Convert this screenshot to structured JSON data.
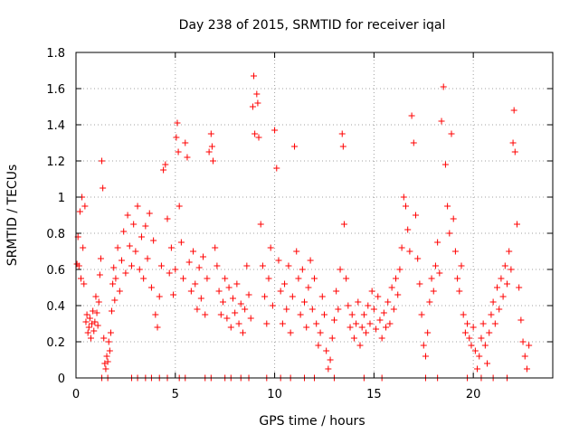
{
  "chart_data": {
    "type": "scatter",
    "title": "Day 238 of 2015, SRMTID for receiver iqal",
    "xlabel": "GPS time / hours",
    "ylabel": "SRMTID / TECUs",
    "xlim": [
      0,
      24
    ],
    "ylim": [
      0,
      1.8
    ],
    "xticks": [
      0,
      5,
      10,
      15,
      20
    ],
    "xtick_labels": [
      "0",
      "5",
      "10",
      "15",
      "20"
    ],
    "yticks": [
      0,
      0.2,
      0.4,
      0.6,
      0.8,
      1,
      1.2,
      1.4,
      1.6,
      1.8
    ],
    "ytick_labels": [
      "0",
      "0.2",
      "0.4",
      "0.6",
      "0.8",
      "1",
      "1.2",
      "1.4",
      "1.6",
      "1.8"
    ],
    "grid": true,
    "marker": "plus",
    "marker_color": "#ff0000",
    "series": [
      {
        "name": "SRMTID",
        "points": [
          [
            0.05,
            0.63
          ],
          [
            0.1,
            0.78
          ],
          [
            0.15,
            0.62
          ],
          [
            0.2,
            0.92
          ],
          [
            0.25,
            0.55
          ],
          [
            0.3,
            1.0
          ],
          [
            0.35,
            0.72
          ],
          [
            0.4,
            0.52
          ],
          [
            0.45,
            0.95
          ],
          [
            0.5,
            0.31
          ],
          [
            0.55,
            0.35
          ],
          [
            0.6,
            0.25
          ],
          [
            0.65,
            0.28
          ],
          [
            0.7,
            0.33
          ],
          [
            0.75,
            0.22
          ],
          [
            0.8,
            0.3
          ],
          [
            0.85,
            0.37
          ],
          [
            0.9,
            0.26
          ],
          [
            0.95,
            0.31
          ],
          [
            1.0,
            0.45
          ],
          [
            1.05,
            0.36
          ],
          [
            1.1,
            0.29
          ],
          [
            1.15,
            0.42
          ],
          [
            1.2,
            0.57
          ],
          [
            1.25,
            0.66
          ],
          [
            1.3,
            1.2
          ],
          [
            1.35,
            1.05
          ],
          [
            1.4,
            0.22
          ],
          [
            1.45,
            0.08
          ],
          [
            1.5,
            0.05
          ],
          [
            1.55,
            0.12
          ],
          [
            1.6,
            0.09
          ],
          [
            1.65,
            0.2
          ],
          [
            1.7,
            0.15
          ],
          [
            1.75,
            0.25
          ],
          [
            1.8,
            0.37
          ],
          [
            1.85,
            0.52
          ],
          [
            1.9,
            0.61
          ],
          [
            1.95,
            0.43
          ],
          [
            2.0,
            0.55
          ],
          [
            2.1,
            0.72
          ],
          [
            2.2,
            0.48
          ],
          [
            2.3,
            0.65
          ],
          [
            2.4,
            0.81
          ],
          [
            2.5,
            0.58
          ],
          [
            2.6,
            0.9
          ],
          [
            2.7,
            0.73
          ],
          [
            2.8,
            0.62
          ],
          [
            2.9,
            0.85
          ],
          [
            3.0,
            0.7
          ],
          [
            3.1,
            0.95
          ],
          [
            3.2,
            0.6
          ],
          [
            3.3,
            0.78
          ],
          [
            3.4,
            0.55
          ],
          [
            3.5,
            0.84
          ],
          [
            3.6,
            0.66
          ],
          [
            3.7,
            0.91
          ],
          [
            3.8,
            0.5
          ],
          [
            3.9,
            0.76
          ],
          [
            4.0,
            0.35
          ],
          [
            4.1,
            0.28
          ],
          [
            4.2,
            0.45
          ],
          [
            4.3,
            0.62
          ],
          [
            4.4,
            1.15
          ],
          [
            4.5,
            1.18
          ],
          [
            4.6,
            0.88
          ],
          [
            4.7,
            0.58
          ],
          [
            4.8,
            0.72
          ],
          [
            4.9,
            0.46
          ],
          [
            5.0,
            0.6
          ],
          [
            5.05,
            1.33
          ],
          [
            5.1,
            1.41
          ],
          [
            5.15,
            1.25
          ],
          [
            5.2,
            0.95
          ],
          [
            5.3,
            0.75
          ],
          [
            5.4,
            0.55
          ],
          [
            5.5,
            1.3
          ],
          [
            5.6,
            1.22
          ],
          [
            5.7,
            0.64
          ],
          [
            5.8,
            0.48
          ],
          [
            5.9,
            0.7
          ],
          [
            6.0,
            0.52
          ],
          [
            6.1,
            0.38
          ],
          [
            6.2,
            0.61
          ],
          [
            6.3,
            0.44
          ],
          [
            6.4,
            0.67
          ],
          [
            6.5,
            0.35
          ],
          [
            6.6,
            0.55
          ],
          [
            6.7,
            1.25
          ],
          [
            6.8,
            1.35
          ],
          [
            6.85,
            1.28
          ],
          [
            6.9,
            1.2
          ],
          [
            7.0,
            0.72
          ],
          [
            7.1,
            0.62
          ],
          [
            7.2,
            0.48
          ],
          [
            7.3,
            0.35
          ],
          [
            7.4,
            0.42
          ],
          [
            7.5,
            0.55
          ],
          [
            7.6,
            0.33
          ],
          [
            7.7,
            0.5
          ],
          [
            7.8,
            0.28
          ],
          [
            7.9,
            0.44
          ],
          [
            8.0,
            0.36
          ],
          [
            8.1,
            0.52
          ],
          [
            8.2,
            0.3
          ],
          [
            8.3,
            0.41
          ],
          [
            8.4,
            0.25
          ],
          [
            8.5,
            0.38
          ],
          [
            8.6,
            0.62
          ],
          [
            8.7,
            0.46
          ],
          [
            8.8,
            0.33
          ],
          [
            8.9,
            1.5
          ],
          [
            8.95,
            1.67
          ],
          [
            9.0,
            1.35
          ],
          [
            9.1,
            1.57
          ],
          [
            9.15,
            1.52
          ],
          [
            9.2,
            1.33
          ],
          [
            9.3,
            0.85
          ],
          [
            9.4,
            0.62
          ],
          [
            9.5,
            0.45
          ],
          [
            9.6,
            0.3
          ],
          [
            9.7,
            0.55
          ],
          [
            9.8,
            0.72
          ],
          [
            9.9,
            0.4
          ],
          [
            10.0,
            1.37
          ],
          [
            10.1,
            1.16
          ],
          [
            10.2,
            0.65
          ],
          [
            10.3,
            0.48
          ],
          [
            10.4,
            0.3
          ],
          [
            10.5,
            0.52
          ],
          [
            10.6,
            0.38
          ],
          [
            10.7,
            0.62
          ],
          [
            10.8,
            0.25
          ],
          [
            10.9,
            0.45
          ],
          [
            11.0,
            1.28
          ],
          [
            11.1,
            0.7
          ],
          [
            11.2,
            0.55
          ],
          [
            11.3,
            0.35
          ],
          [
            11.4,
            0.6
          ],
          [
            11.5,
            0.42
          ],
          [
            11.6,
            0.28
          ],
          [
            11.7,
            0.5
          ],
          [
            11.8,
            0.65
          ],
          [
            11.9,
            0.38
          ],
          [
            12.0,
            0.55
          ],
          [
            12.1,
            0.3
          ],
          [
            12.2,
            0.18
          ],
          [
            12.3,
            0.25
          ],
          [
            12.4,
            0.45
          ],
          [
            12.5,
            0.35
          ],
          [
            12.6,
            0.15
          ],
          [
            12.7,
            0.05
          ],
          [
            12.8,
            0.1
          ],
          [
            12.9,
            0.22
          ],
          [
            13.0,
            0.32
          ],
          [
            13.1,
            0.48
          ],
          [
            13.2,
            0.38
          ],
          [
            13.3,
            0.6
          ],
          [
            13.4,
            1.35
          ],
          [
            13.45,
            1.28
          ],
          [
            13.5,
            0.85
          ],
          [
            13.6,
            0.55
          ],
          [
            13.7,
            0.4
          ],
          [
            13.8,
            0.28
          ],
          [
            13.9,
            0.35
          ],
          [
            14.0,
            0.22
          ],
          [
            14.1,
            0.3
          ],
          [
            14.2,
            0.42
          ],
          [
            14.3,
            0.18
          ],
          [
            14.4,
            0.28
          ],
          [
            14.5,
            0.35
          ],
          [
            14.6,
            0.25
          ],
          [
            14.7,
            0.4
          ],
          [
            14.8,
            0.3
          ],
          [
            14.9,
            0.48
          ],
          [
            15.0,
            0.38
          ],
          [
            15.1,
            0.27
          ],
          [
            15.2,
            0.45
          ],
          [
            15.3,
            0.32
          ],
          [
            15.4,
            0.22
          ],
          [
            15.5,
            0.36
          ],
          [
            15.6,
            0.28
          ],
          [
            15.7,
            0.42
          ],
          [
            15.8,
            0.3
          ],
          [
            15.9,
            0.5
          ],
          [
            16.0,
            0.38
          ],
          [
            16.1,
            0.55
          ],
          [
            16.2,
            0.46
          ],
          [
            16.3,
            0.6
          ],
          [
            16.4,
            0.72
          ],
          [
            16.5,
            1.0
          ],
          [
            16.6,
            0.95
          ],
          [
            16.7,
            0.82
          ],
          [
            16.8,
            0.7
          ],
          [
            16.9,
            1.45
          ],
          [
            17.0,
            1.3
          ],
          [
            17.1,
            0.9
          ],
          [
            17.2,
            0.66
          ],
          [
            17.3,
            0.52
          ],
          [
            17.4,
            0.35
          ],
          [
            17.5,
            0.18
          ],
          [
            17.6,
            0.12
          ],
          [
            17.7,
            0.25
          ],
          [
            17.8,
            0.42
          ],
          [
            17.9,
            0.55
          ],
          [
            18.0,
            0.48
          ],
          [
            18.1,
            0.62
          ],
          [
            18.2,
            0.75
          ],
          [
            18.3,
            0.58
          ],
          [
            18.4,
            1.42
          ],
          [
            18.5,
            1.61
          ],
          [
            18.6,
            1.18
          ],
          [
            18.7,
            0.95
          ],
          [
            18.8,
            0.8
          ],
          [
            18.9,
            1.35
          ],
          [
            19.0,
            0.88
          ],
          [
            19.1,
            0.7
          ],
          [
            19.2,
            0.55
          ],
          [
            19.3,
            0.48
          ],
          [
            19.4,
            0.62
          ],
          [
            19.5,
            0.35
          ],
          [
            19.6,
            0.25
          ],
          [
            19.7,
            0.3
          ],
          [
            19.8,
            0.22
          ],
          [
            19.9,
            0.18
          ],
          [
            20.0,
            0.28
          ],
          [
            20.1,
            0.15
          ],
          [
            20.2,
            0.05
          ],
          [
            20.3,
            0.12
          ],
          [
            20.4,
            0.22
          ],
          [
            20.5,
            0.3
          ],
          [
            20.6,
            0.18
          ],
          [
            20.7,
            0.08
          ],
          [
            20.8,
            0.25
          ],
          [
            20.9,
            0.35
          ],
          [
            21.0,
            0.42
          ],
          [
            21.1,
            0.3
          ],
          [
            21.2,
            0.5
          ],
          [
            21.3,
            0.38
          ],
          [
            21.4,
            0.55
          ],
          [
            21.5,
            0.45
          ],
          [
            21.6,
            0.62
          ],
          [
            21.7,
            0.52
          ],
          [
            21.8,
            0.7
          ],
          [
            21.9,
            0.6
          ],
          [
            22.0,
            1.3
          ],
          [
            22.05,
            1.48
          ],
          [
            22.1,
            1.25
          ],
          [
            22.2,
            0.85
          ],
          [
            22.3,
            0.5
          ],
          [
            22.4,
            0.32
          ],
          [
            22.5,
            0.2
          ],
          [
            22.6,
            0.12
          ],
          [
            22.7,
            0.05
          ],
          [
            22.8,
            0.18
          ],
          [
            1.3,
            0
          ],
          [
            1.6,
            0
          ],
          [
            2.8,
            0
          ],
          [
            3.1,
            0
          ],
          [
            3.5,
            0
          ],
          [
            3.8,
            0
          ],
          [
            4.2,
            0
          ],
          [
            4.6,
            0
          ],
          [
            5.2,
            0
          ],
          [
            5.5,
            0
          ],
          [
            6.5,
            0
          ],
          [
            6.8,
            0
          ],
          [
            7.5,
            0
          ],
          [
            7.8,
            0
          ],
          [
            8.3,
            0
          ],
          [
            8.7,
            0
          ],
          [
            9.6,
            0
          ],
          [
            10.3,
            0
          ],
          [
            10.8,
            0
          ],
          [
            11.5,
            0
          ],
          [
            12.0,
            0
          ],
          [
            13.0,
            0
          ],
          [
            14.5,
            0
          ],
          [
            15.4,
            0
          ],
          [
            17.6,
            0
          ],
          [
            18.2,
            0
          ],
          [
            19.7,
            0
          ],
          [
            20.4,
            0
          ],
          [
            21.0,
            0
          ],
          [
            21.7,
            0
          ]
        ]
      }
    ]
  }
}
